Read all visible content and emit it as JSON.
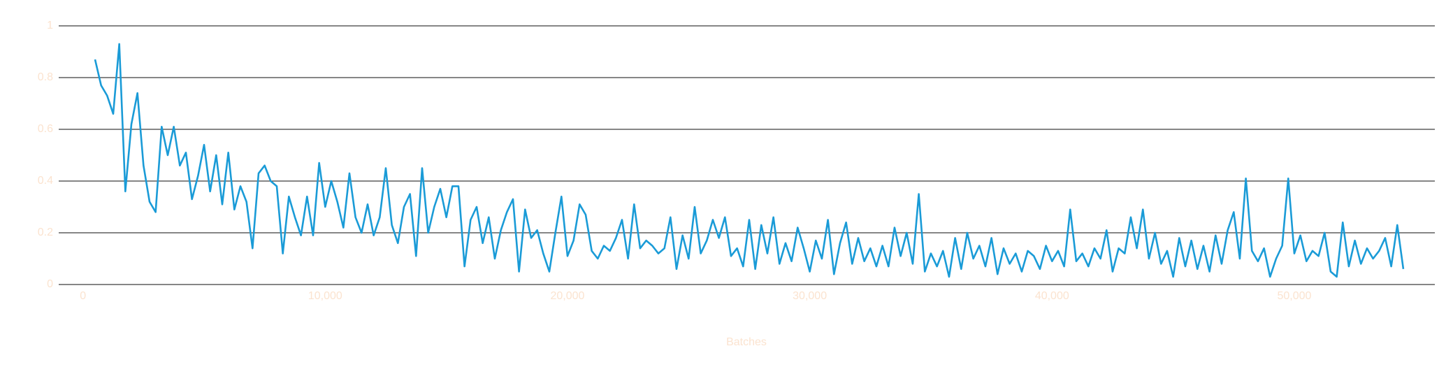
{
  "chart_data": {
    "type": "line",
    "x_label": "Batches",
    "x": [
      500,
      750,
      1000,
      1250,
      1500,
      1750,
      2000,
      2250,
      2500,
      2750,
      3000,
      3250,
      3500,
      3750,
      4000,
      4250,
      4500,
      4750,
      5000,
      5250,
      5500,
      5750,
      6000,
      6250,
      6500,
      6750,
      7000,
      7250,
      7500,
      7750,
      8000,
      8250,
      8500,
      8750,
      9000,
      9250,
      9500,
      9750,
      10000,
      10250,
      10500,
      10750,
      11000,
      11250,
      11500,
      11750,
      12000,
      12250,
      12500,
      12750,
      13000,
      13250,
      13500,
      13750,
      14000,
      14250,
      14500,
      14750,
      15000,
      15250,
      15500,
      15750,
      16000,
      16250,
      16500,
      16750,
      17000,
      17250,
      17500,
      17750,
      18000,
      18250,
      18500,
      18750,
      19000,
      19250,
      19500,
      19750,
      20000,
      20250,
      20500,
      20750,
      21000,
      21250,
      21500,
      21750,
      22000,
      22250,
      22500,
      22750,
      23000,
      23250,
      23500,
      23750,
      24000,
      24250,
      24500,
      24750,
      25000,
      25250,
      25500,
      25750,
      26000,
      26250,
      26500,
      26750,
      27000,
      27250,
      27500,
      27750,
      28000,
      28250,
      28500,
      28750,
      29000,
      29250,
      29500,
      29750,
      30000,
      30250,
      30500,
      30750,
      31000,
      31250,
      31500,
      31750,
      32000,
      32250,
      32500,
      32750,
      33000,
      33250,
      33500,
      33750,
      34000,
      34250,
      34500,
      34750,
      35000,
      35250,
      35500,
      35750,
      36000,
      36250,
      36500,
      36750,
      37000,
      37250,
      37500,
      37750,
      38000,
      38250,
      38500,
      38750,
      39000,
      39250,
      39500,
      39750,
      40000,
      40250,
      40500,
      40750,
      41000,
      41250,
      41500,
      41750,
      42000,
      42250,
      42500,
      42750,
      43000,
      43250,
      43500,
      43750,
      44000,
      44250,
      44500,
      44750,
      45000,
      45250,
      45500,
      45750,
      46000,
      46250,
      46500,
      46750,
      47000,
      47250,
      47500,
      47750,
      48000,
      48250,
      48500,
      48750,
      49000,
      49250,
      49500,
      49750,
      50000,
      50250,
      50500,
      50750,
      51000,
      51250,
      51500,
      51750,
      52000,
      52250,
      52500,
      52750,
      53000,
      53250,
      53500,
      53750,
      54000,
      54250,
      54500
    ],
    "series": [
      {
        "color": "#1a9bd7",
        "values": [
          0.87,
          0.77,
          0.73,
          0.66,
          0.93,
          0.36,
          0.62,
          0.74,
          0.46,
          0.32,
          0.28,
          0.61,
          0.5,
          0.61,
          0.46,
          0.51,
          0.33,
          0.42,
          0.54,
          0.36,
          0.5,
          0.31,
          0.51,
          0.29,
          0.38,
          0.32,
          0.14,
          0.43,
          0.46,
          0.4,
          0.38,
          0.12,
          0.34,
          0.26,
          0.19,
          0.34,
          0.19,
          0.47,
          0.3,
          0.4,
          0.32,
          0.22,
          0.43,
          0.26,
          0.2,
          0.31,
          0.19,
          0.26,
          0.45,
          0.23,
          0.16,
          0.3,
          0.35,
          0.11,
          0.45,
          0.2,
          0.3,
          0.37,
          0.26,
          0.38,
          0.38,
          0.07,
          0.25,
          0.3,
          0.16,
          0.26,
          0.1,
          0.21,
          0.28,
          0.33,
          0.05,
          0.29,
          0.18,
          0.21,
          0.12,
          0.05,
          0.2,
          0.34,
          0.11,
          0.17,
          0.31,
          0.27,
          0.13,
          0.1,
          0.15,
          0.13,
          0.18,
          0.25,
          0.1,
          0.31,
          0.14,
          0.17,
          0.15,
          0.12,
          0.14,
          0.26,
          0.06,
          0.19,
          0.1,
          0.3,
          0.12,
          0.17,
          0.25,
          0.18,
          0.26,
          0.11,
          0.14,
          0.07,
          0.25,
          0.06,
          0.23,
          0.12,
          0.26,
          0.08,
          0.16,
          0.09,
          0.22,
          0.14,
          0.05,
          0.17,
          0.1,
          0.25,
          0.04,
          0.16,
          0.24,
          0.08,
          0.18,
          0.09,
          0.14,
          0.07,
          0.15,
          0.07,
          0.22,
          0.11,
          0.2,
          0.08,
          0.35,
          0.05,
          0.12,
          0.07,
          0.13,
          0.03,
          0.18,
          0.06,
          0.2,
          0.1,
          0.15,
          0.07,
          0.18,
          0.04,
          0.14,
          0.08,
          0.12,
          0.05,
          0.13,
          0.11,
          0.06,
          0.15,
          0.09,
          0.13,
          0.07,
          0.29,
          0.09,
          0.12,
          0.07,
          0.14,
          0.1,
          0.21,
          0.05,
          0.14,
          0.12,
          0.26,
          0.14,
          0.29,
          0.1,
          0.2,
          0.08,
          0.13,
          0.03,
          0.18,
          0.07,
          0.17,
          0.06,
          0.15,
          0.05,
          0.19,
          0.08,
          0.21,
          0.28,
          0.1,
          0.41,
          0.13,
          0.09,
          0.14,
          0.03,
          0.1,
          0.15,
          0.41,
          0.12,
          0.19,
          0.09,
          0.13,
          0.11,
          0.2,
          0.05,
          0.03,
          0.24,
          0.07,
          0.17,
          0.08,
          0.14,
          0.1,
          0.13,
          0.18,
          0.07,
          0.23,
          0.06
        ]
      }
    ],
    "xlim": [
      -1000,
      55800
    ],
    "xticks": [
      0,
      {
        "value": 10000,
        "label": "10,000"
      },
      {
        "value": 20000,
        "label": "20,000"
      },
      {
        "value": 30000,
        "label": "30,000"
      },
      {
        "value": 40000,
        "label": "40,000"
      },
      {
        "value": 50000,
        "label": "50,000"
      }
    ],
    "ylim": [
      0,
      1
    ],
    "yticks": [
      0,
      0.2,
      0.4,
      0.6,
      0.8,
      1
    ],
    "grid": true
  }
}
